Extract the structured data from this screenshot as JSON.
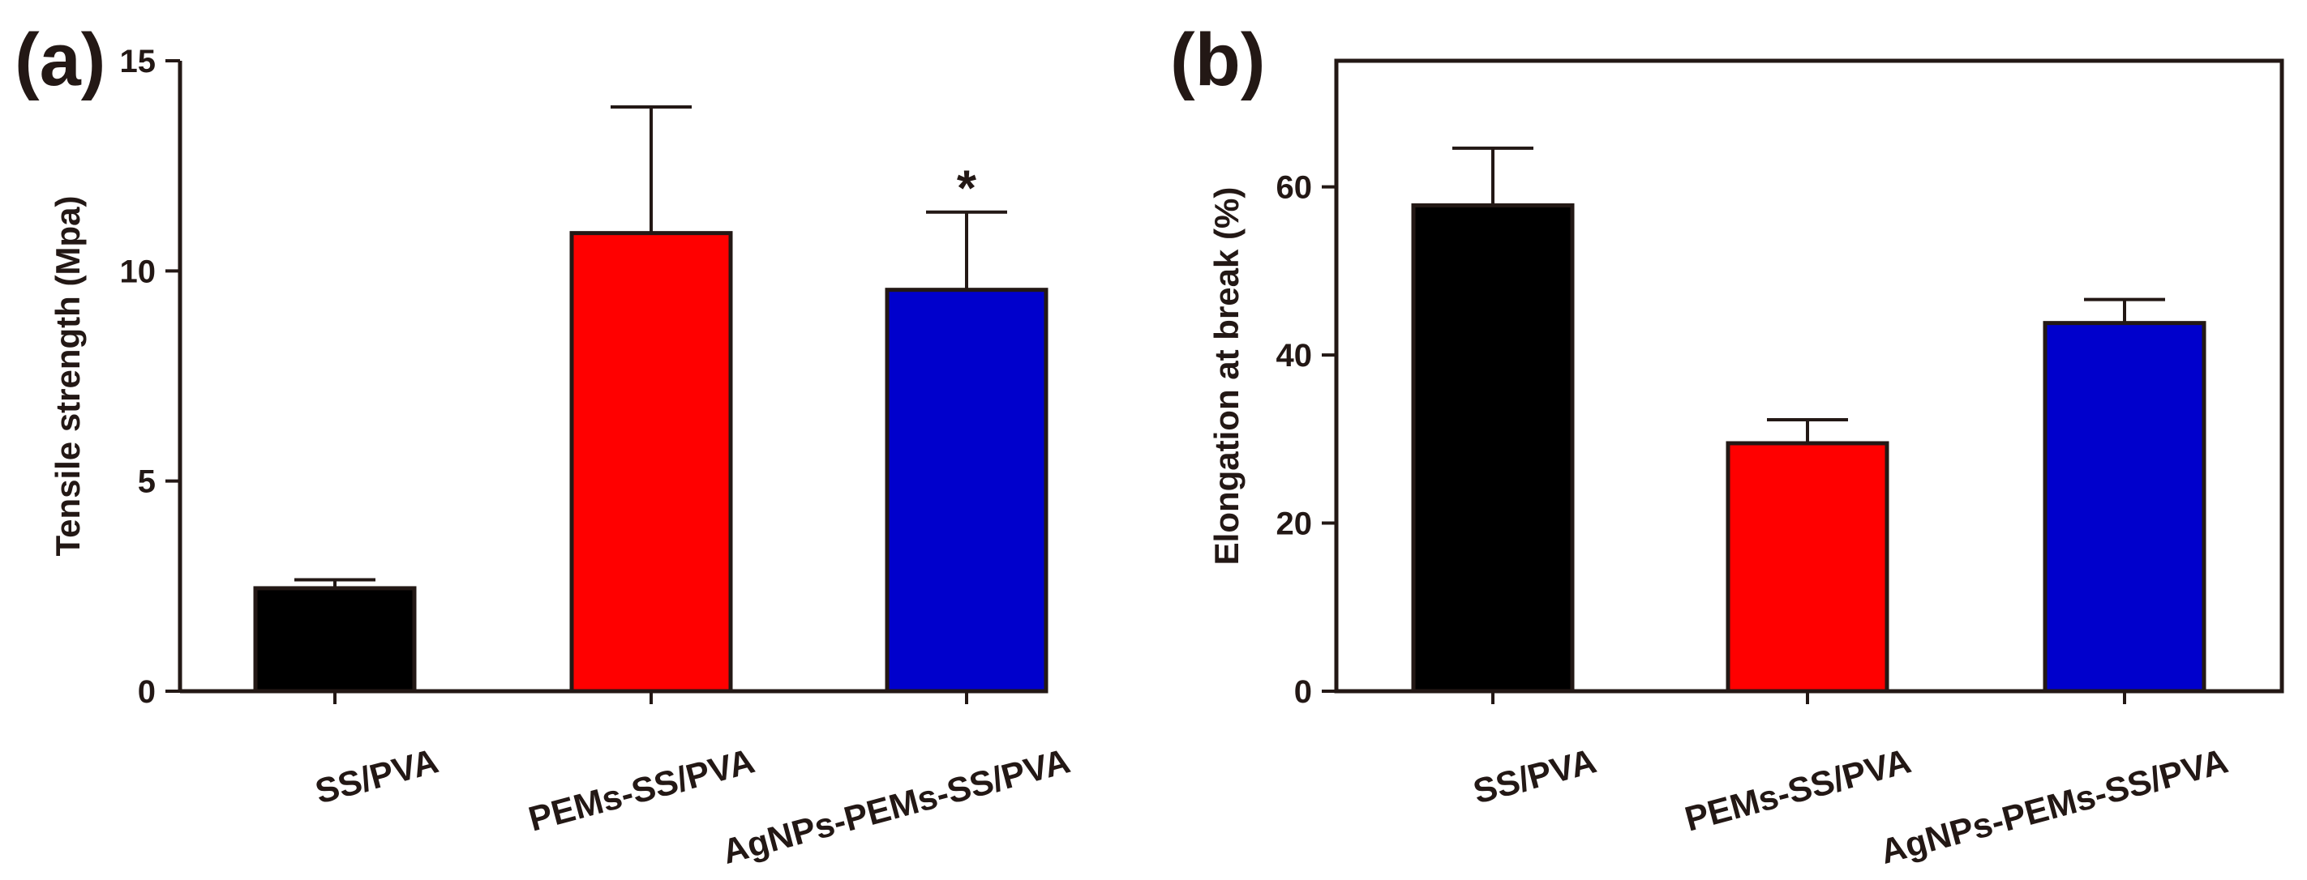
{
  "chart_data": [
    {
      "panel": "(a)",
      "type": "bar",
      "title": "",
      "xlabel": "",
      "ylabel": "Tensile strength (Mpa)",
      "ylim": [
        0,
        15
      ],
      "yticks": [
        0,
        5,
        10,
        15
      ],
      "categories": [
        "SS/PVA",
        "PEMs-SS/PVA",
        "AgNPs-PEMs-SS/PVA"
      ],
      "values": [
        2.45,
        10.9,
        9.55
      ],
      "errors": [
        0.2,
        3.0,
        1.85
      ],
      "colors": [
        "#000000",
        "#ff0000",
        "#0000cc"
      ],
      "annotations": [
        "",
        "",
        "*"
      ],
      "grid": false
    },
    {
      "panel": "(b)",
      "type": "bar",
      "title": "",
      "xlabel": "",
      "ylabel": "Elongation at break (%)",
      "ylim": [
        0,
        75
      ],
      "yticks": [
        0,
        20,
        40,
        60
      ],
      "categories": [
        "SS/PVA",
        "PEMs-SS/PVA",
        "AgNPs-PEMs-SS/PVA"
      ],
      "values": [
        57.8,
        29.5,
        43.8
      ],
      "errors": [
        6.8,
        2.8,
        2.8
      ],
      "colors": [
        "#000000",
        "#ff0000",
        "#0000cc"
      ],
      "annotations": [
        "",
        "",
        ""
      ],
      "grid": false
    }
  ]
}
